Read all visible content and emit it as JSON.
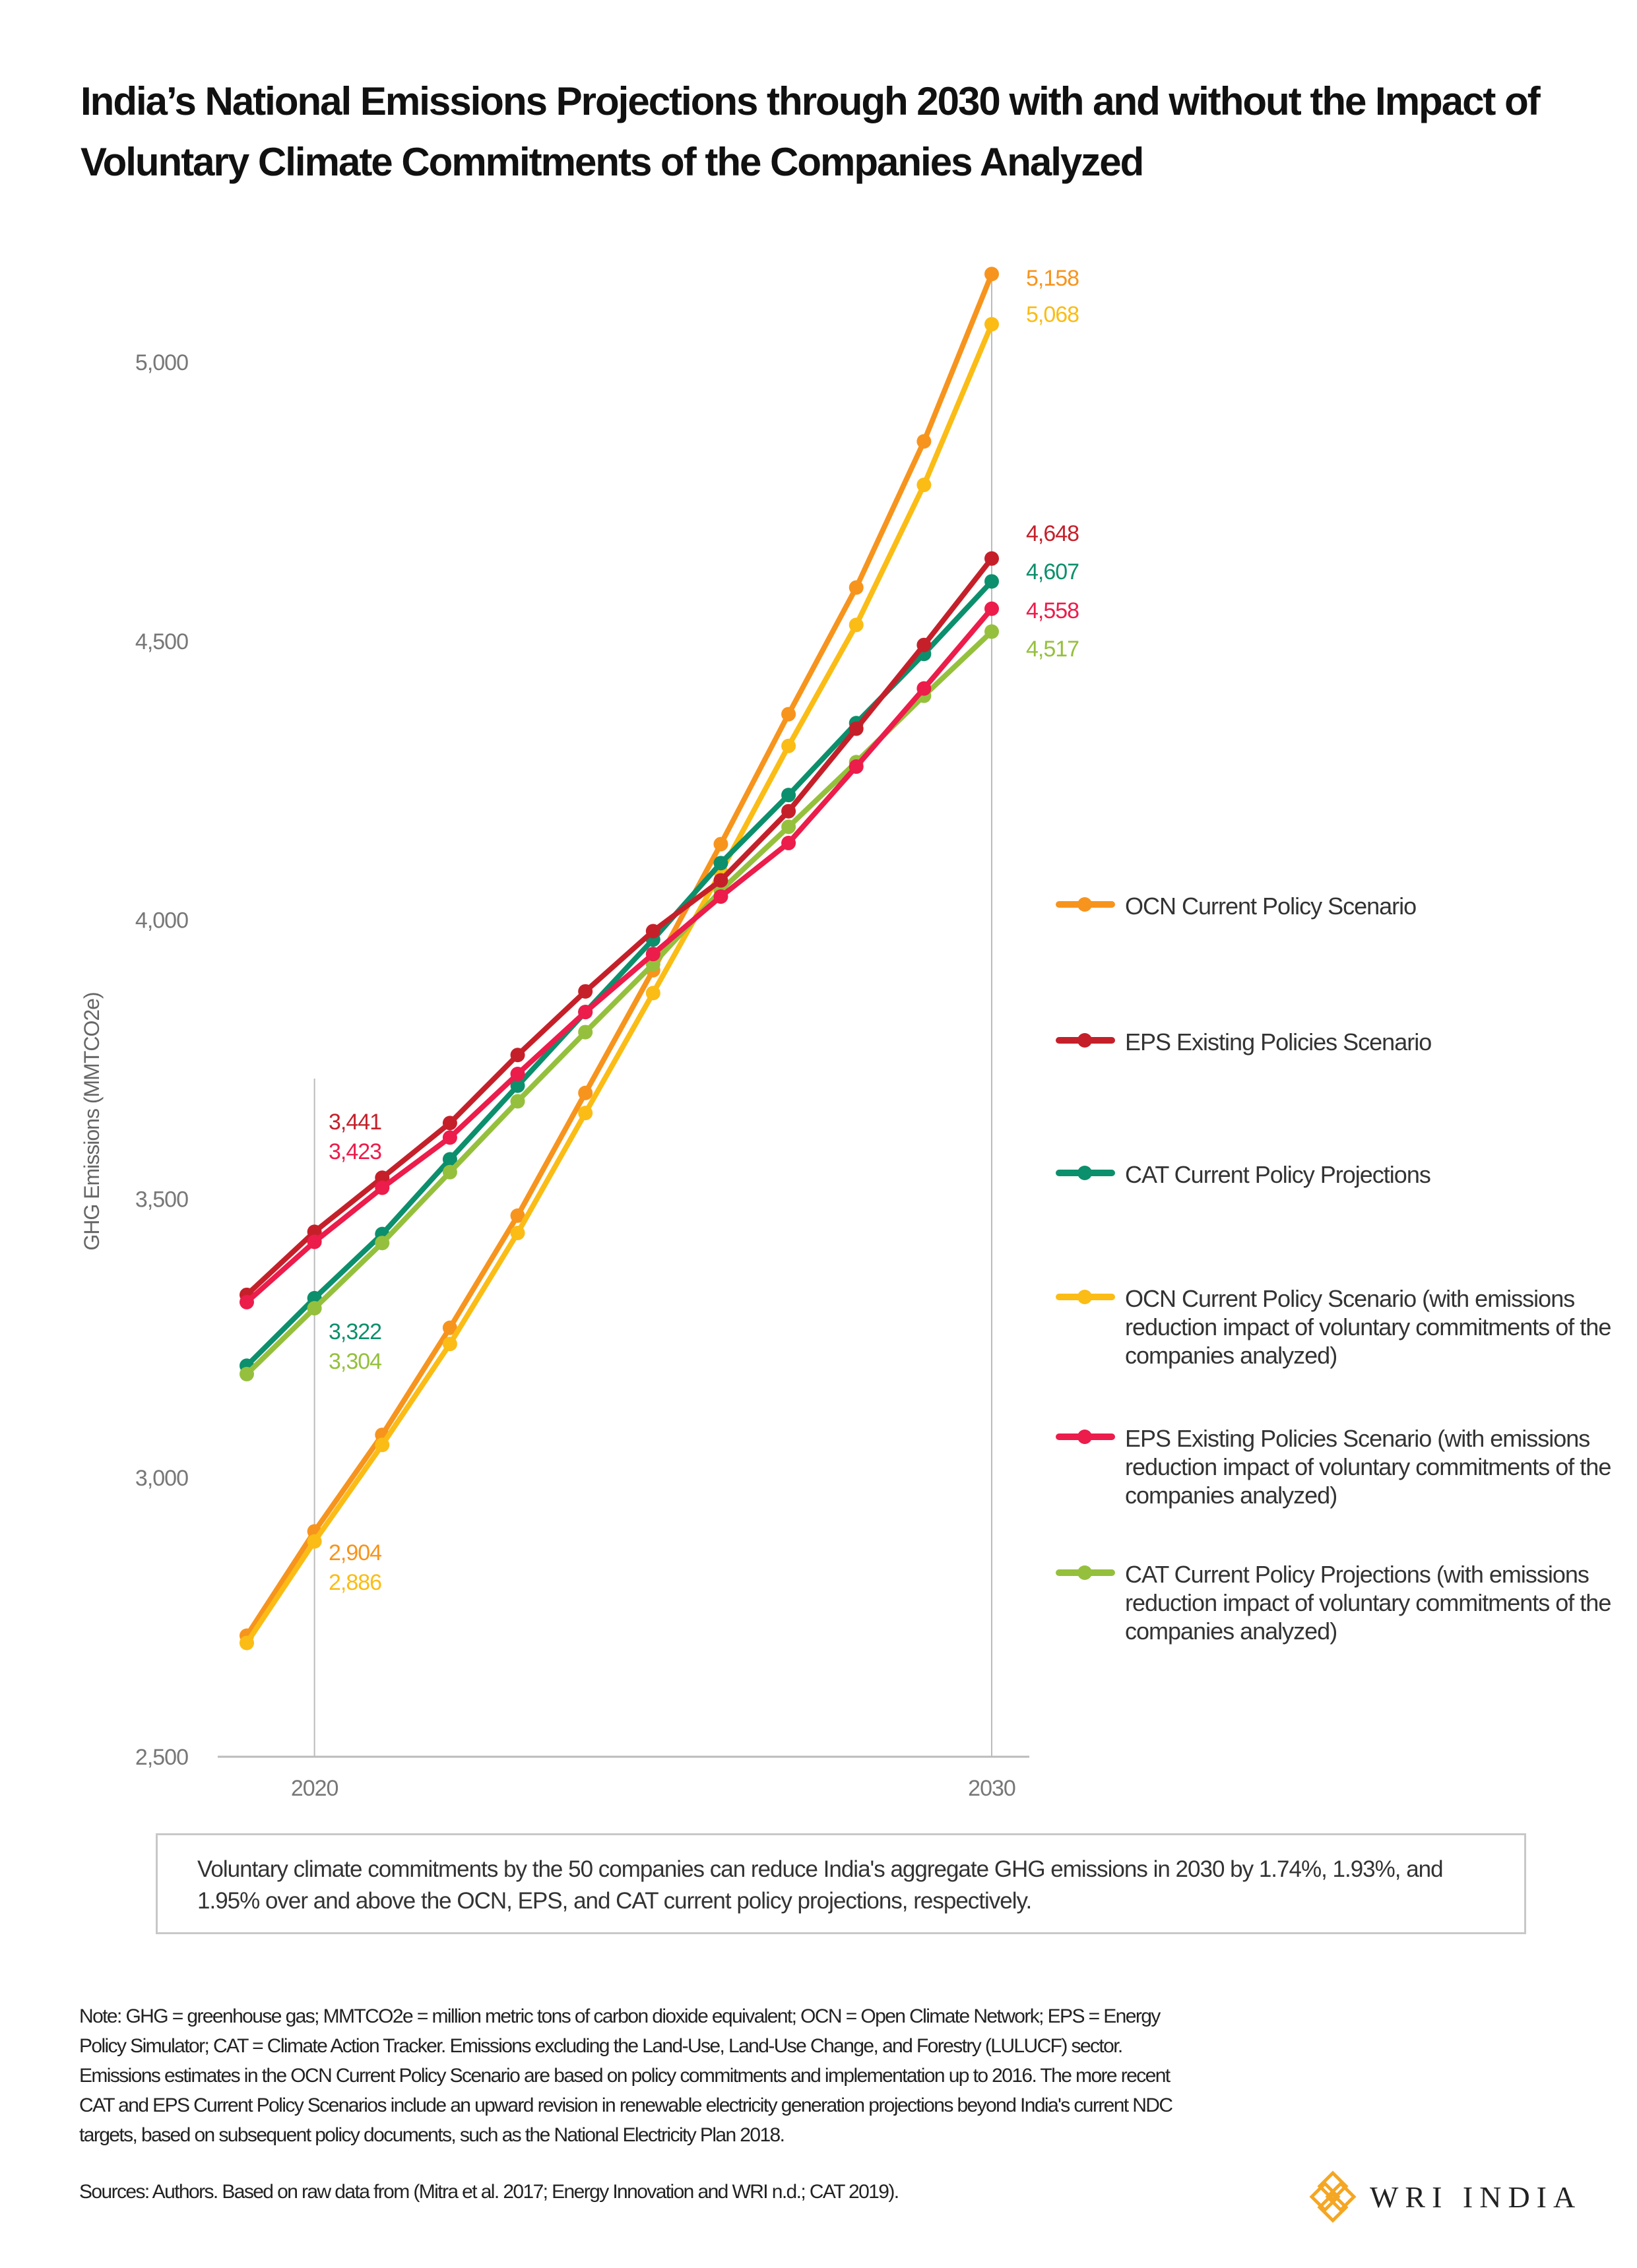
{
  "title": "India’s National Emissions Projections through 2030 with and without the Impact of Voluntary Climate Commitments of the Companies Analyzed",
  "chart_data": {
    "type": "line",
    "title": "India’s National Emissions Projections through 2030 with and without the Impact of Voluntary Climate Commitments of the Companies Analyzed",
    "xlabel": "",
    "ylabel": "GHG Emissions (MMTCO2e)",
    "x": [
      2019,
      2020,
      2021,
      2022,
      2023,
      2024,
      2025,
      2026,
      2027,
      2028,
      2029,
      2030
    ],
    "x_ticks": [
      "2020",
      "2030"
    ],
    "y_ticks": [
      "2,500",
      "3,000",
      "3,500",
      "4,000",
      "4,500",
      "5,000"
    ],
    "y_tick_values": [
      2500,
      3000,
      3500,
      4000,
      4500,
      5000
    ],
    "ylim": [
      2500,
      5200
    ],
    "grid": false,
    "legend_position": "right",
    "series": [
      {
        "name": "OCN Current Policy Scenario",
        "color": "#f7941d",
        "values": [
          2717,
          2904,
          3077,
          3269,
          3470,
          3690,
          3910,
          4136,
          4369,
          4596,
          4858,
          5158
        ],
        "labels": {
          "2020": "2,904",
          "2030": "5,158"
        }
      },
      {
        "name": "EPS Existing Policies Scenario",
        "color": "#c5202a",
        "values": [
          3328,
          3441,
          3538,
          3636,
          3758,
          3872,
          3980,
          4071,
          4195,
          4343,
          4493,
          4648
        ],
        "labels": {
          "2020": "3,441",
          "2030": "4,648"
        }
      },
      {
        "name": "CAT Current Policy Projections",
        "color": "#0c8f6c",
        "values": [
          3201,
          3322,
          3437,
          3571,
          3703,
          3835,
          3965,
          4102,
          4224,
          4353,
          4477,
          4607
        ],
        "labels": {
          "2020": "3,322",
          "2030": "4,607"
        }
      },
      {
        "name": "OCN Current Policy Scenario (with emissions reduction impact of voluntary commitments of the companies analyzed)",
        "color": "#fbbc15",
        "values": [
          2704,
          2886,
          3059,
          3240,
          3439,
          3654,
          3869,
          4086,
          4312,
          4529,
          4780,
          5068
        ],
        "labels": {
          "2020": "2,886",
          "2030": "5,068"
        }
      },
      {
        "name": "EPS Existing Policies Scenario (with emissions reduction impact of voluntary commitments of the companies analyzed)",
        "color": "#ec1c4b",
        "values": [
          3315,
          3423,
          3520,
          3610,
          3724,
          3835,
          3939,
          4042,
          4138,
          4275,
          4415,
          4558
        ],
        "labels": {
          "2020": "3,423",
          "2030": "4,558"
        }
      },
      {
        "name": "CAT Current Policy Projections (with emissions reduction impact of voluntary commitments of the companies analyzed)",
        "color": "#95c03d",
        "values": [
          3186,
          3304,
          3421,
          3548,
          3675,
          3799,
          3921,
          4053,
          4167,
          4283,
          4402,
          4517
        ],
        "labels": {
          "2020": "3,304",
          "2030": "4,517"
        }
      }
    ]
  },
  "callout": "Voluntary climate commitments by the 50 companies can reduce India's aggregate GHG emissions in 2030 by 1.74%, 1.93%, and 1.95% over and above the OCN, EPS, and CAT current policy projections, respectively.",
  "note": "Note: GHG = greenhouse gas; MMTCO2e = million metric tons of carbon dioxide equivalent; OCN = Open Climate Network; EPS = Energy Policy Simulator; CAT = Climate Action Tracker. Emissions excluding the Land-Use, Land-Use Change, and Forestry (LULUCF) sector. Emissions estimates in the OCN Current Policy Scenario are based on policy commitments and implementation up to 2016. The more recent CAT and EPS Current Policy Scenarios include an upward revision in renewable electricity generation projections beyond India's current NDC targets, based on subsequent policy documents, such as the National Electricity Plan 2018.",
  "sources": "Sources: Authors. Based on raw data from (Mitra et al. 2017; Energy Innovation and WRI n.d.; CAT 2019).",
  "logo": {
    "text": "WRI INDIA",
    "color": "#f5a623"
  }
}
